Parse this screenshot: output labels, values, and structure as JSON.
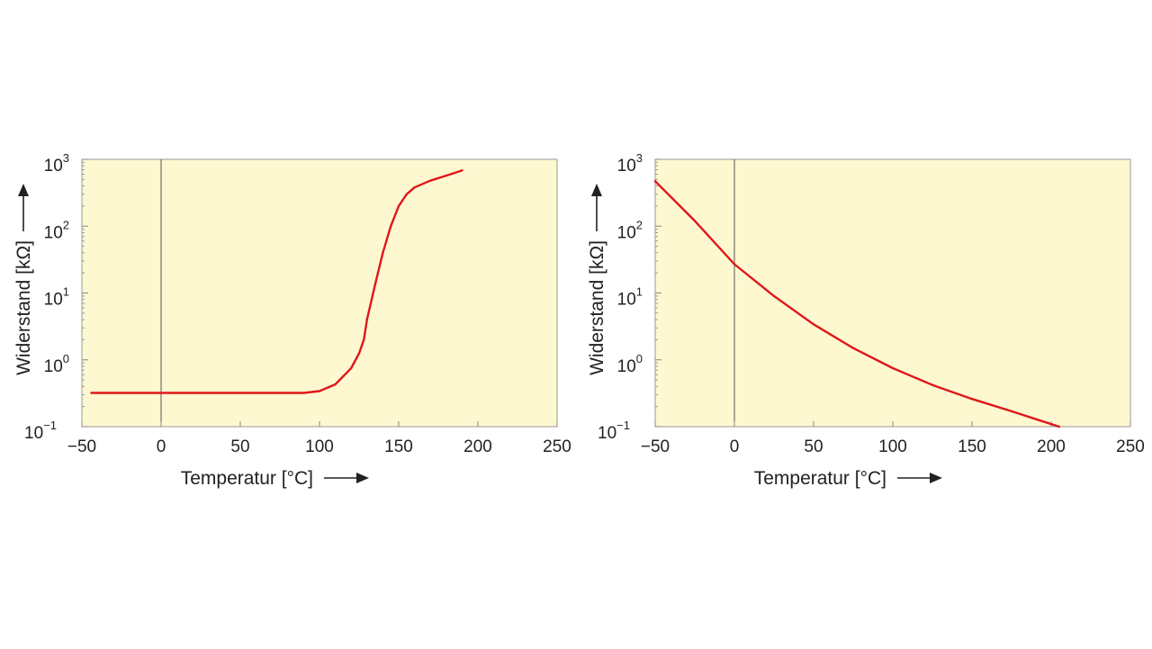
{
  "chart_data": [
    {
      "type": "line",
      "xlabel": "Temperatur [°C]",
      "ylabel": "Widerstand [kΩ]",
      "xlim": [
        -50,
        250
      ],
      "xticks": [
        -50,
        0,
        50,
        100,
        150,
        200,
        250
      ],
      "x_tick_labels": [
        "−50",
        "0",
        "50",
        "100",
        "150",
        "200",
        "250"
      ],
      "ylim": [
        0.1,
        1000
      ],
      "yscale": "log",
      "y_tick_labels": [
        {
          "base": "10",
          "exp": "3"
        },
        {
          "base": "10",
          "exp": "2"
        },
        {
          "base": "10",
          "exp": "1"
        },
        {
          "base": "10",
          "exp": "0"
        },
        {
          "base": "10",
          "exp": "−1"
        }
      ],
      "plot_background": "#fdf8d0",
      "line_color": "#e0161b",
      "series": [
        {
          "x": [
            -44,
            0,
            50,
            90,
            100,
            110,
            120,
            125,
            128,
            130,
            135,
            140,
            145,
            150,
            155,
            160,
            170,
            180,
            190
          ],
          "y": [
            0.32,
            0.32,
            0.32,
            0.32,
            0.34,
            0.43,
            0.75,
            1.25,
            2.0,
            4.0,
            13.0,
            40.0,
            100.0,
            200.0,
            300.0,
            380.0,
            480.0,
            570.0,
            680.0
          ]
        }
      ]
    },
    {
      "type": "line",
      "xlabel": "Temperatur [°C]",
      "ylabel": "Widerstand [kΩ]",
      "xlim": [
        -50,
        250
      ],
      "xticks": [
        -50,
        0,
        50,
        100,
        150,
        200,
        250
      ],
      "x_tick_labels": [
        "−50",
        "0",
        "50",
        "100",
        "150",
        "200",
        "250"
      ],
      "ylim": [
        0.1,
        1000
      ],
      "yscale": "log",
      "y_tick_labels": [
        {
          "base": "10",
          "exp": "3"
        },
        {
          "base": "10",
          "exp": "2"
        },
        {
          "base": "10",
          "exp": "1"
        },
        {
          "base": "10",
          "exp": "0"
        },
        {
          "base": "10",
          "exp": "−1"
        }
      ],
      "plot_background": "#fdf8d0",
      "line_color": "#e0161b",
      "series": [
        {
          "x": [
            -50,
            -25,
            0,
            25,
            50,
            75,
            100,
            125,
            150,
            175,
            205
          ],
          "y": [
            470,
            120,
            27,
            9.0,
            3.4,
            1.5,
            0.75,
            0.42,
            0.26,
            0.17,
            0.1
          ]
        }
      ]
    }
  ]
}
